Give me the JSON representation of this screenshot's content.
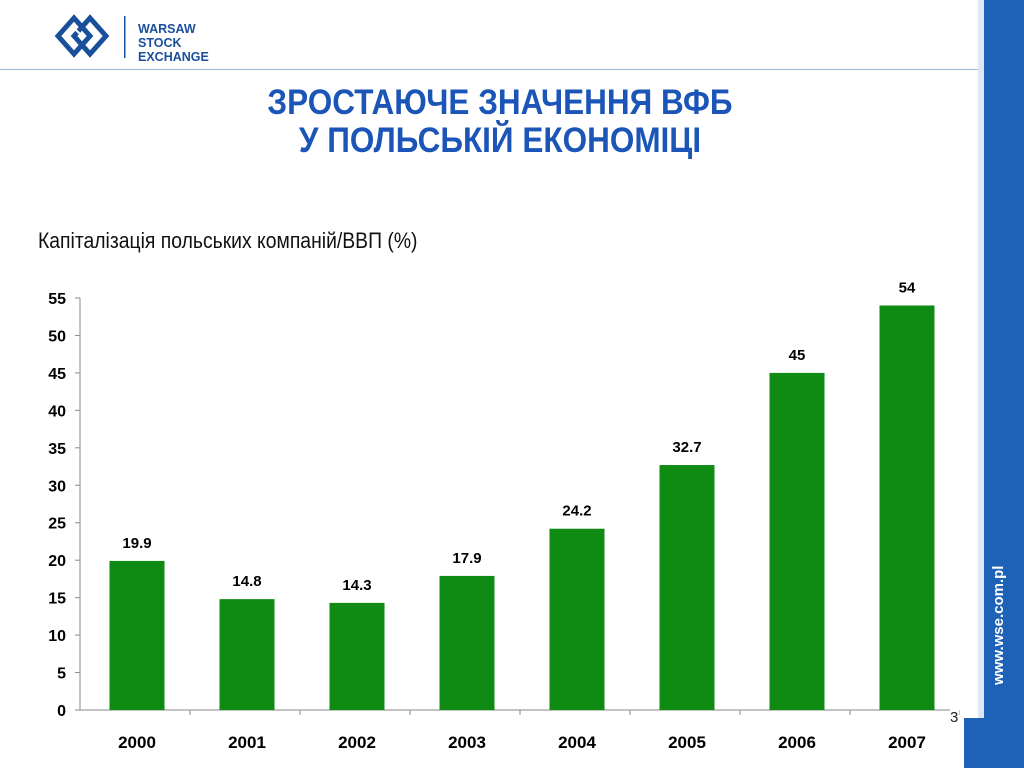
{
  "logo": {
    "lines": [
      "WARSAW",
      "STOCK",
      "EXCHANGE"
    ]
  },
  "title": {
    "line1": "ЗРОСТАЮЧЕ ЗНАЧЕННЯ ВФБ",
    "line2": "У ПОЛЬСЬКІЙ ЕКОНОМІЦІ"
  },
  "sidebar": {
    "url": "www.wse.com.pl"
  },
  "page_number": "3",
  "colors": {
    "brand_blue": "#1e62b8",
    "title_blue": "#1b55b8",
    "bar_green": "#0f8a13"
  },
  "chart_data": {
    "type": "bar",
    "title": "Капіталізація польських компаній/ВВП (%)",
    "categories": [
      "2000",
      "2001",
      "2002",
      "2003",
      "2004",
      "2005",
      "2006",
      "2007"
    ],
    "values": [
      19.9,
      14.8,
      14.3,
      17.9,
      24.2,
      32.7,
      45,
      54
    ],
    "data_labels": [
      "19.9",
      "14.8",
      "14.3",
      "17.9",
      "24.2",
      "32.7",
      "45",
      "54"
    ],
    "ylim": [
      0,
      55
    ],
    "yticks": [
      0,
      5,
      10,
      15,
      20,
      25,
      30,
      35,
      40,
      45,
      50,
      55
    ],
    "xlabel": "",
    "ylabel": "",
    "grid": false,
    "legend": "none"
  }
}
